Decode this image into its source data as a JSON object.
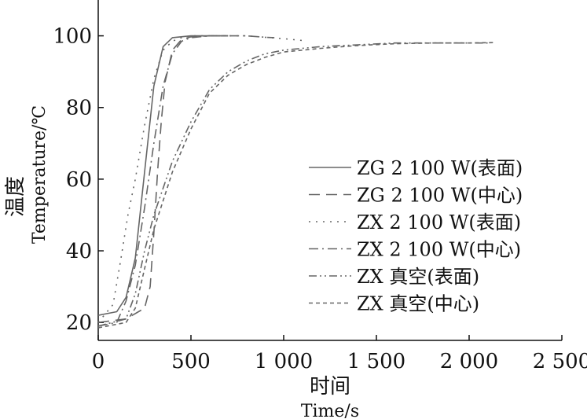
{
  "chart_data": {
    "type": "line",
    "xlabel_cn": "时间",
    "xlabel": "Time/s",
    "ylabel_cn": "温度",
    "ylabel": "Temperature/℃",
    "xlim": [
      0,
      2500
    ],
    "ylim": [
      15,
      110
    ],
    "x_ticks": [
      0,
      500,
      1000,
      1500,
      2000,
      2500
    ],
    "x_tick_labels": [
      "0",
      "500",
      "1 000",
      "1 500",
      "2 000",
      "2 500"
    ],
    "y_ticks": [
      20,
      40,
      60,
      80,
      100
    ],
    "y_tick_labels": [
      "20",
      "40",
      "60",
      "80",
      "100"
    ],
    "grid": false,
    "legend_position": "center-right",
    "series": [
      {
        "name": "ZG 2 100 W(表面)",
        "dash": "solid",
        "color": "#666666",
        "points": [
          [
            0,
            22
          ],
          [
            100,
            23
          ],
          [
            150,
            27
          ],
          [
            200,
            38
          ],
          [
            250,
            62
          ],
          [
            300,
            86
          ],
          [
            350,
            97
          ],
          [
            400,
            99.5
          ],
          [
            500,
            100
          ],
          [
            600,
            100
          ],
          [
            700,
            100
          ]
        ]
      },
      {
        "name": "ZG 2 100 W(中心)",
        "dash": "dash",
        "color": "#666666",
        "points": [
          [
            0,
            20
          ],
          [
            150,
            21
          ],
          [
            250,
            24
          ],
          [
            280,
            30
          ],
          [
            300,
            45
          ],
          [
            320,
            62
          ],
          [
            340,
            76
          ],
          [
            360,
            87
          ],
          [
            400,
            96
          ],
          [
            450,
            99
          ],
          [
            500,
            99.7
          ],
          [
            600,
            100
          ],
          [
            700,
            100
          ]
        ]
      },
      {
        "name": "ZX 2 100 W(表面)",
        "dash": "dot",
        "color": "#666666",
        "points": [
          [
            0,
            20
          ],
          [
            80,
            25
          ],
          [
            120,
            37
          ],
          [
            160,
            50
          ],
          [
            200,
            60
          ],
          [
            250,
            75
          ],
          [
            300,
            88
          ],
          [
            350,
            96
          ],
          [
            400,
            98.5
          ],
          [
            450,
            99.5
          ],
          [
            500,
            100
          ],
          [
            600,
            100
          ],
          [
            700,
            100
          ],
          [
            800,
            100
          ],
          [
            900,
            99.6
          ],
          [
            1000,
            99.2
          ],
          [
            1100,
            98.7
          ]
        ]
      },
      {
        "name": "ZX 2 100 W(中心)",
        "dash": "dashdot",
        "color": "#666666",
        "points": [
          [
            0,
            19
          ],
          [
            100,
            20
          ],
          [
            150,
            26
          ],
          [
            200,
            36
          ],
          [
            250,
            52
          ],
          [
            300,
            70
          ],
          [
            350,
            86
          ],
          [
            400,
            95
          ],
          [
            450,
            98.5
          ],
          [
            500,
            99.5
          ],
          [
            600,
            100
          ],
          [
            700,
            100
          ],
          [
            800,
            100
          ],
          [
            900,
            99.6
          ],
          [
            950,
            99.5
          ]
        ]
      },
      {
        "name": "ZX 真空(表面)",
        "dash": "dashdotdot",
        "color": "#666666",
        "points": [
          [
            0,
            19
          ],
          [
            150,
            21
          ],
          [
            200,
            28
          ],
          [
            250,
            40
          ],
          [
            300,
            50
          ],
          [
            400,
            65
          ],
          [
            500,
            76
          ],
          [
            600,
            85
          ],
          [
            700,
            90
          ],
          [
            800,
            93
          ],
          [
            900,
            95
          ],
          [
            1000,
            96
          ],
          [
            1100,
            96.5
          ],
          [
            1200,
            97
          ],
          [
            1400,
            97.5
          ],
          [
            1600,
            98
          ],
          [
            1800,
            98
          ],
          [
            2000,
            98
          ],
          [
            2100,
            98
          ]
        ]
      },
      {
        "name": "ZX 真空(中心)",
        "dash": "shortdash",
        "color": "#666666",
        "points": [
          [
            0,
            18.5
          ],
          [
            150,
            20
          ],
          [
            200,
            24
          ],
          [
            250,
            35
          ],
          [
            300,
            46
          ],
          [
            400,
            62
          ],
          [
            500,
            74
          ],
          [
            600,
            84
          ],
          [
            700,
            89
          ],
          [
            800,
            92
          ],
          [
            900,
            94
          ],
          [
            1000,
            95.5
          ],
          [
            1200,
            96.5
          ],
          [
            1400,
            97.3
          ],
          [
            1600,
            97.8
          ],
          [
            1800,
            98
          ],
          [
            2000,
            98
          ],
          [
            2130,
            98.1
          ]
        ]
      }
    ]
  }
}
